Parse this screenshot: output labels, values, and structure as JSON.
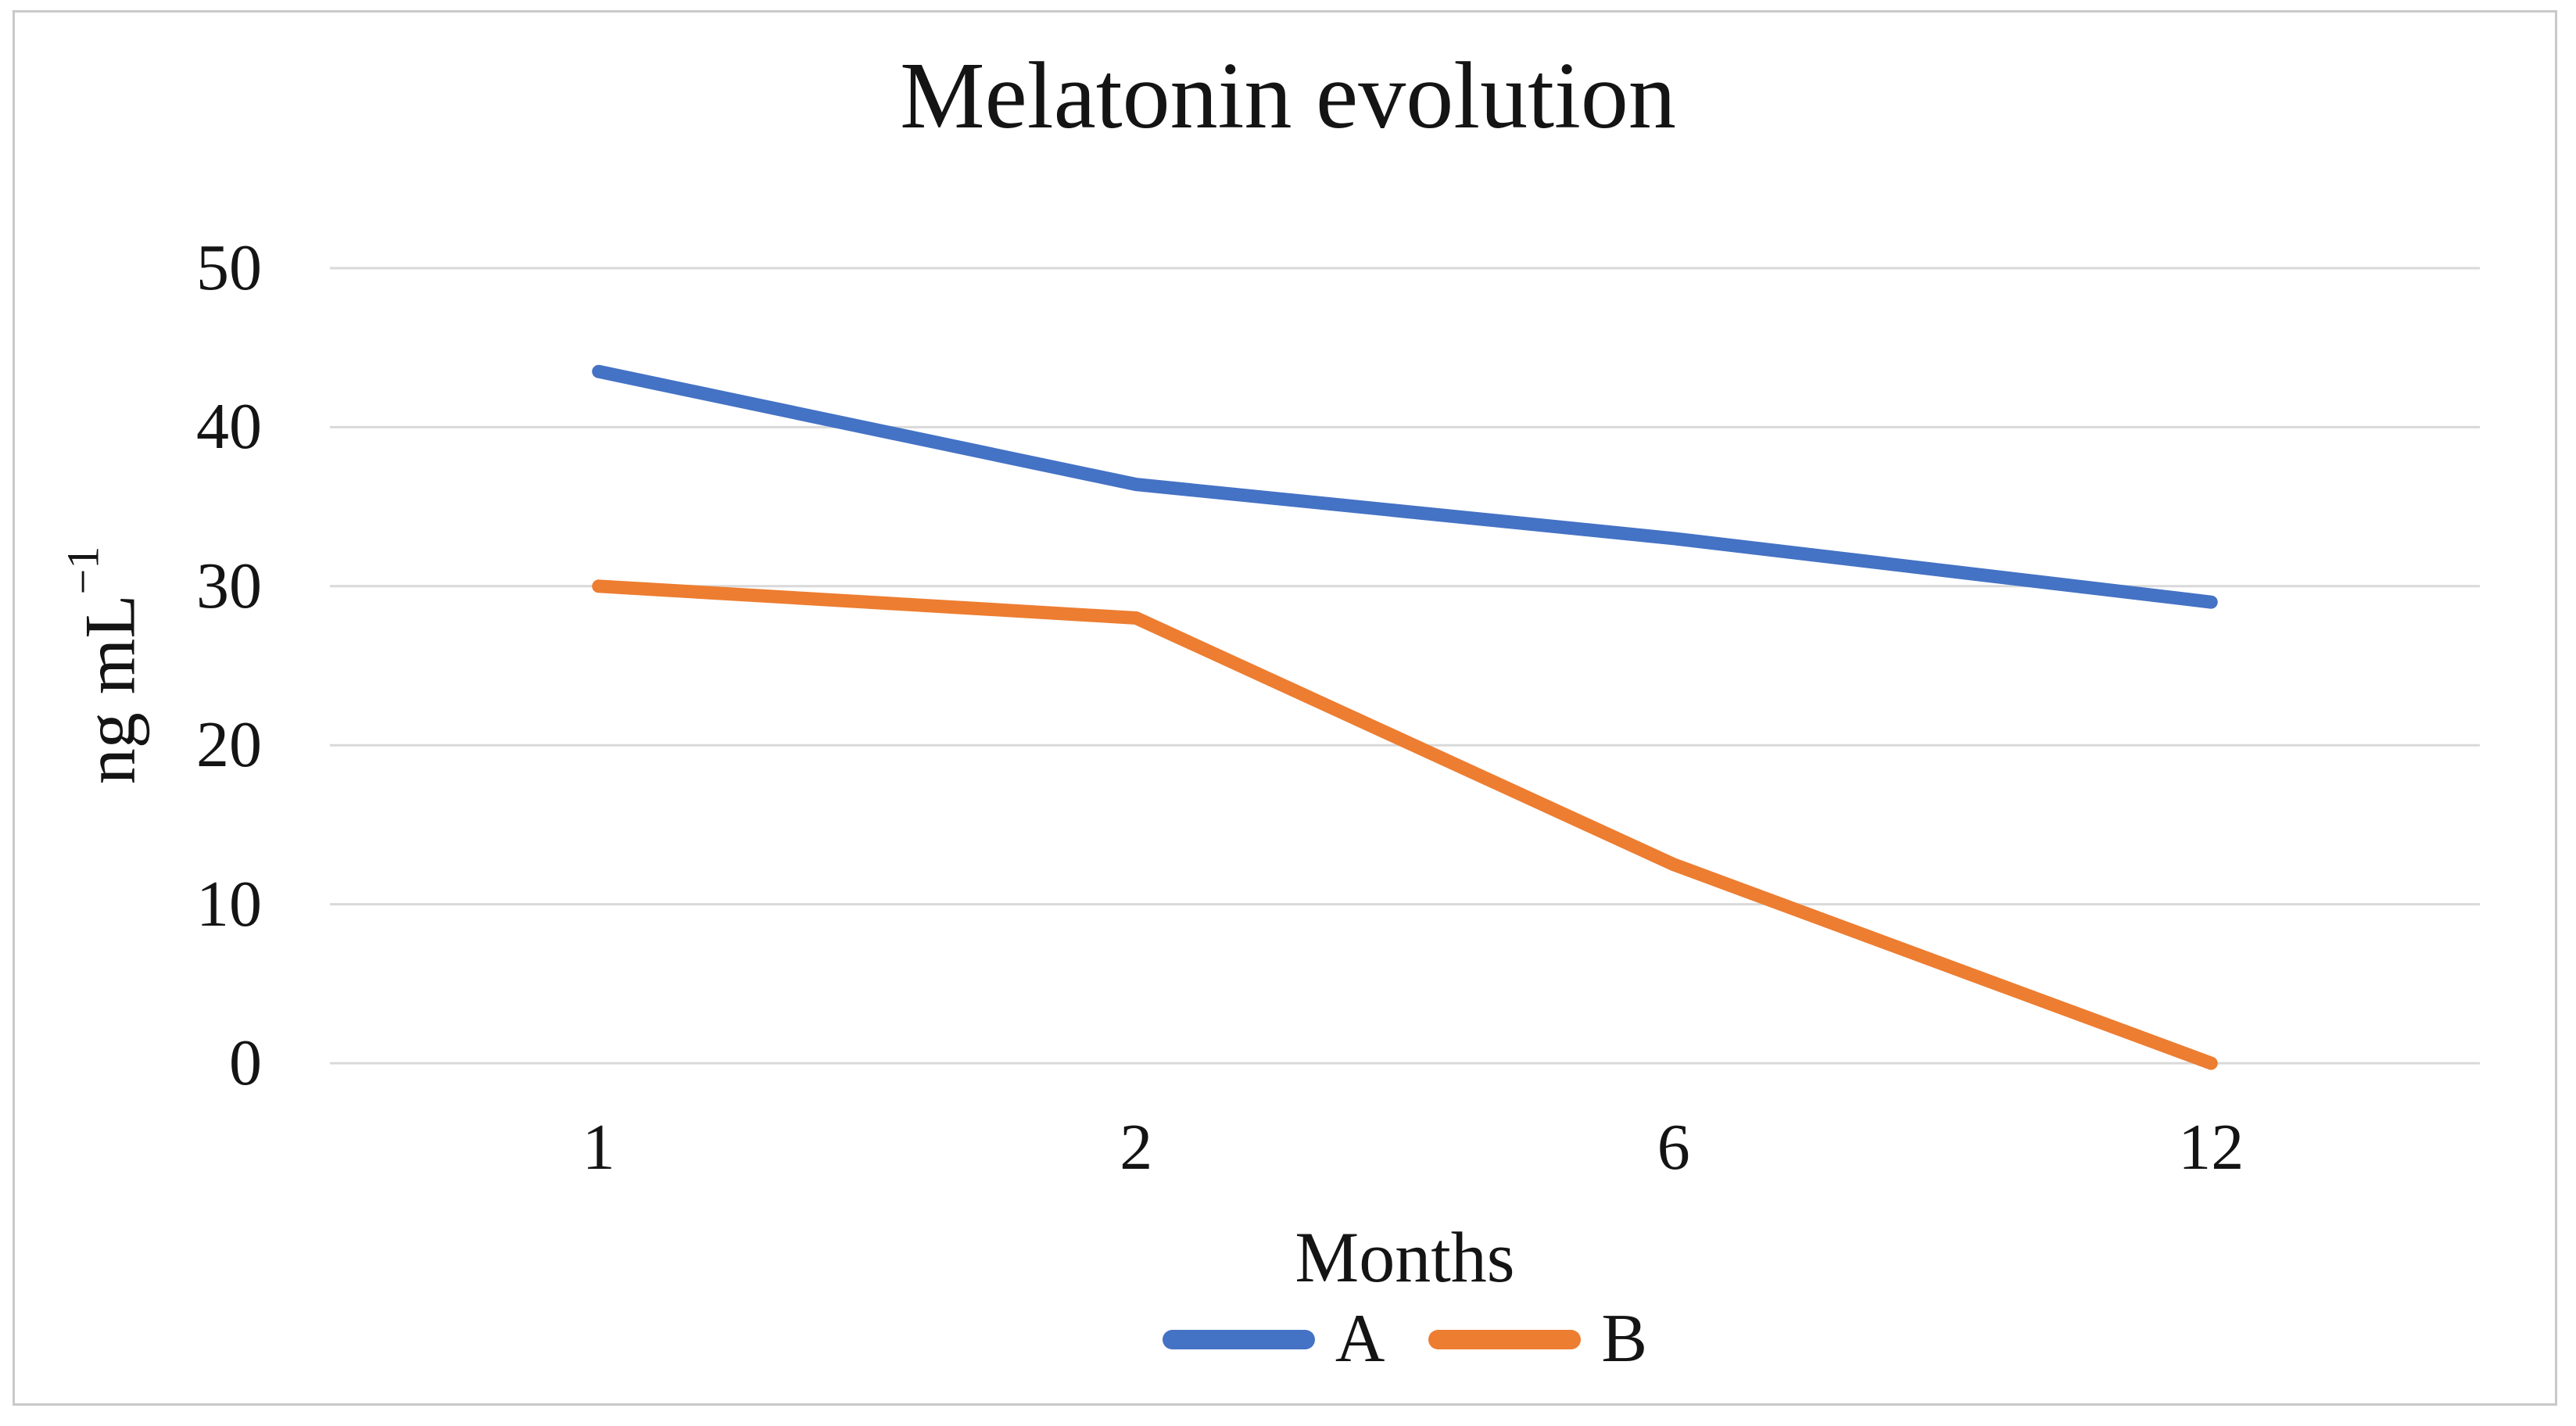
{
  "figure": {
    "background": "#ffffff",
    "border_color": "#c9c9c9",
    "text_color": "#141414"
  },
  "chart_data": {
    "type": "line",
    "title": "Melatonin evolution",
    "categories": [
      "1",
      "2",
      "6",
      "12"
    ],
    "series": [
      {
        "name": "A",
        "color": "#4472C4",
        "values": [
          43.5,
          36.4,
          33,
          29
        ]
      },
      {
        "name": "B",
        "color": "#ED7D31",
        "values": [
          30,
          28,
          12.5,
          0
        ]
      }
    ],
    "xlabel": "Months",
    "ylabel_prefix": "ng mL",
    "ylabel_superscript": "−1",
    "y_ticks": [
      0,
      10,
      20,
      30,
      40,
      50
    ],
    "ylim": [
      0,
      50
    ],
    "grid": true,
    "gridline_color": "#d9d9d9",
    "line_width": 17,
    "legend_position": "bottom"
  }
}
